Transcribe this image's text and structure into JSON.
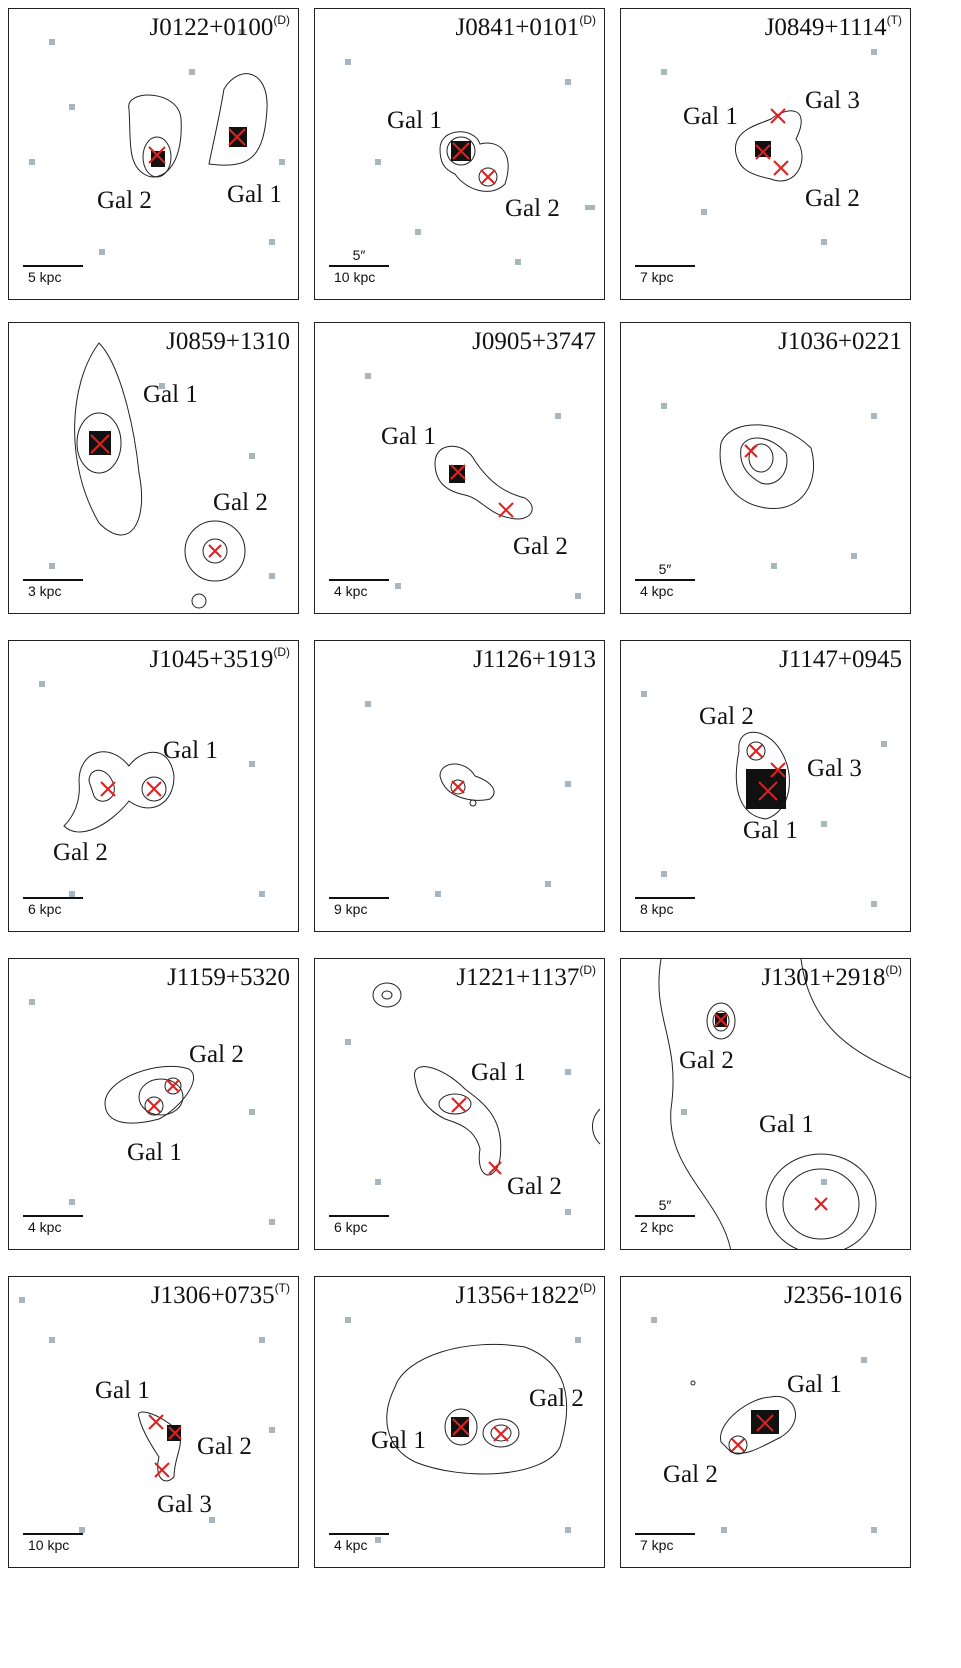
{
  "panels": [
    {
      "title": "J0122+0100",
      "sup": "(D)",
      "scale": "5 kpc",
      "arcsec": "",
      "labels": [
        "Gal 2",
        "Gal 1"
      ]
    },
    {
      "title": "J0841+0101",
      "sup": "(D)",
      "scale": "10 kpc",
      "arcsec": "5″",
      "labels": [
        "Gal 1",
        "Gal 2"
      ]
    },
    {
      "title": "J0849+1114",
      "sup": "(T)",
      "scale": "7 kpc",
      "arcsec": "",
      "labels": [
        "Gal 1",
        "Gal 3",
        "Gal 2"
      ]
    },
    {
      "title": "J0859+1310",
      "sup": "",
      "scale": "3 kpc",
      "arcsec": "",
      "labels": [
        "Gal 1",
        "Gal 2"
      ]
    },
    {
      "title": "J0905+3747",
      "sup": "",
      "scale": "4 kpc",
      "arcsec": "",
      "labels": [
        "Gal 1",
        "Gal 2"
      ]
    },
    {
      "title": "J1036+0221",
      "sup": "",
      "scale": "4 kpc",
      "arcsec": "5″",
      "labels": []
    },
    {
      "title": "J1045+3519",
      "sup": "(D)",
      "scale": "6 kpc",
      "arcsec": "",
      "labels": [
        "Gal 1",
        "Gal 2"
      ]
    },
    {
      "title": "J1126+1913",
      "sup": "",
      "scale": "9 kpc",
      "arcsec": "",
      "labels": []
    },
    {
      "title": "J1147+0945",
      "sup": "",
      "scale": "8 kpc",
      "arcsec": "",
      "labels": [
        "Gal 2",
        "Gal 3",
        "Gal 1"
      ]
    },
    {
      "title": "J1159+5320",
      "sup": "",
      "scale": "4 kpc",
      "arcsec": "",
      "labels": [
        "Gal 2",
        "Gal 1"
      ]
    },
    {
      "title": "J1221+1137",
      "sup": "(D)",
      "scale": "6 kpc",
      "arcsec": "",
      "labels": [
        "Gal 1",
        "Gal 2"
      ]
    },
    {
      "title": "J1301+2918",
      "sup": "(D)",
      "scale": "2 kpc",
      "arcsec": "5″",
      "labels": [
        "Gal 2",
        "Gal 1"
      ]
    },
    {
      "title": "J1306+0735",
      "sup": "(T)",
      "scale": "10 kpc",
      "arcsec": "",
      "labels": [
        "Gal 1",
        "Gal 2",
        "Gal 3"
      ]
    },
    {
      "title": "J1356+1822",
      "sup": "(D)",
      "scale": "4 kpc",
      "arcsec": "",
      "labels": [
        "Gal 2",
        "Gal 1"
      ]
    },
    {
      "title": "J2356-1016",
      "sup": "",
      "scale": "7 kpc",
      "arcsec": "",
      "labels": [
        "Gal 1",
        "Gal 2"
      ]
    }
  ]
}
